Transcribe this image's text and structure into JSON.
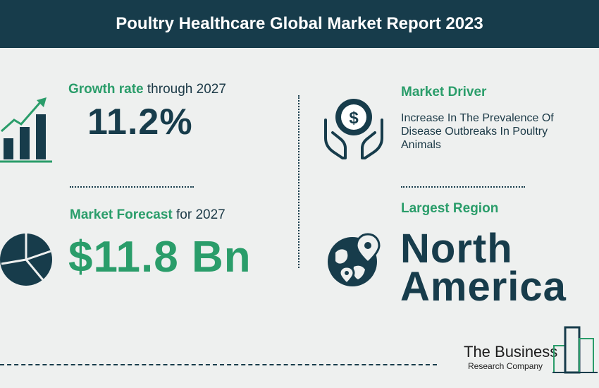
{
  "header": {
    "title": "Poultry Healthcare Global Market Report 2023"
  },
  "growth": {
    "label_bold": "Growth rate",
    "label_light": " through 2027",
    "value": "11.2%",
    "icon": "bar-chart-growth-icon"
  },
  "forecast": {
    "label_bold": "Market Forecast",
    "label_light": " for 2027",
    "value": "$11.8 Bn",
    "icon": "pie-chart-icon"
  },
  "driver": {
    "label": "Market Driver",
    "text": "Increase In The Prevalence Of Disease Outbreaks In Poultry Animals",
    "icon": "hands-dollar-icon"
  },
  "region": {
    "label": "Largest Region",
    "line1": "North",
    "line2": "America",
    "icon": "globe-pin-icon"
  },
  "logo": {
    "main": "The Business",
    "sub": "Research Company"
  },
  "colors": {
    "navy": "#173c4b",
    "green": "#2a9d6a",
    "background": "#eef0ef"
  }
}
